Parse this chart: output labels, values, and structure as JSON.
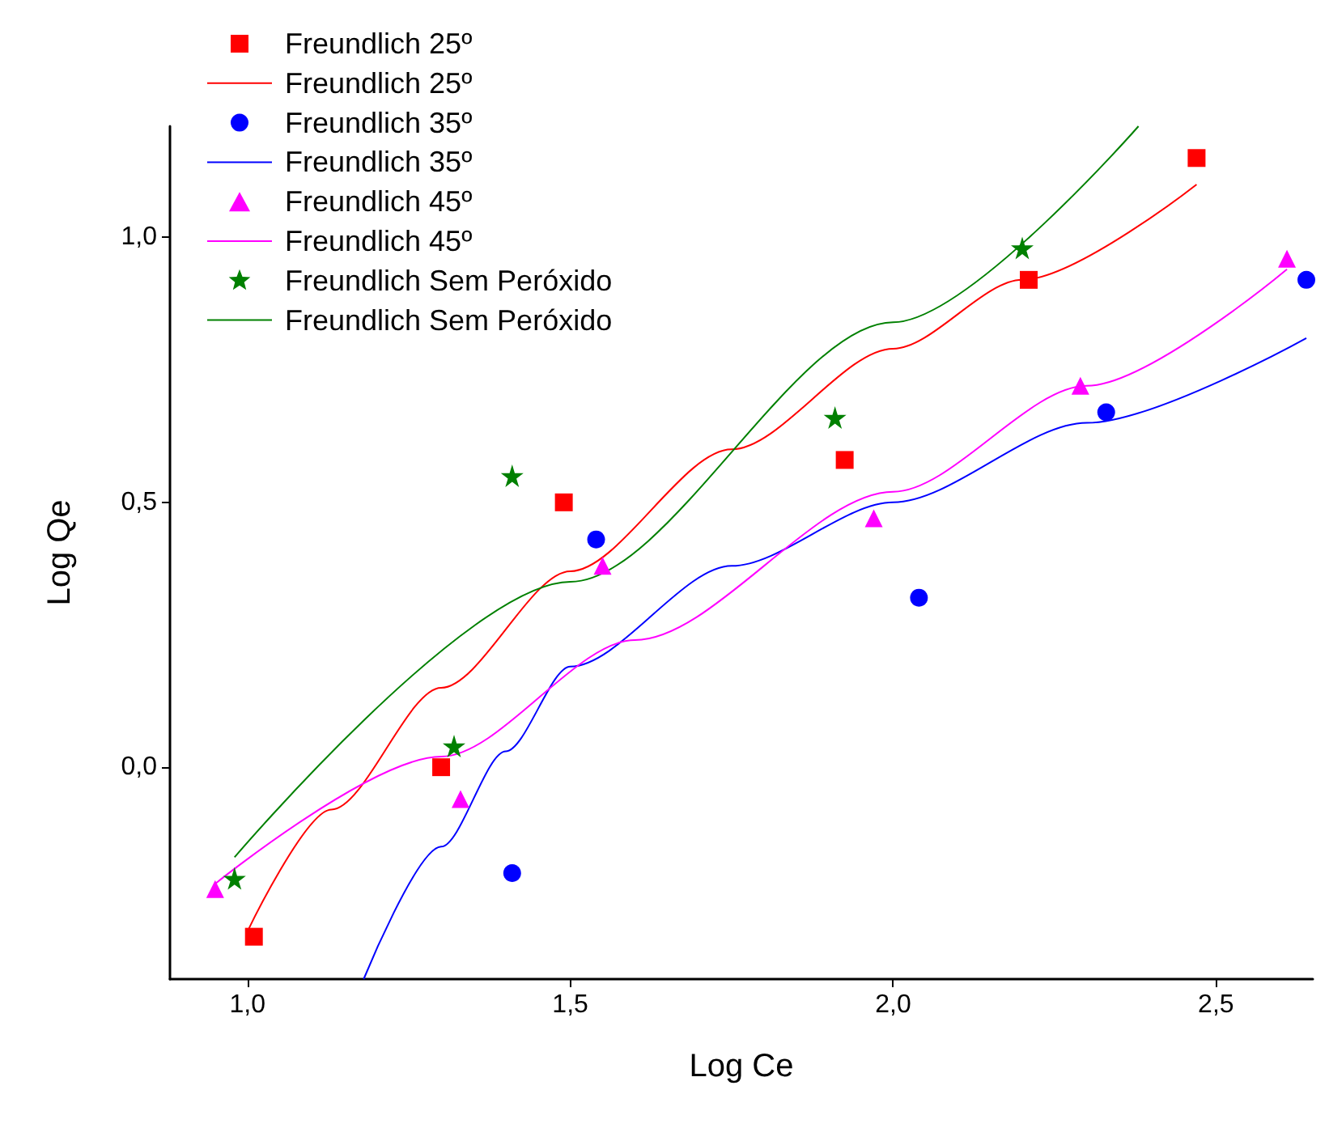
{
  "chart_data": {
    "type": "scatter",
    "xlabel": "Log Ce",
    "ylabel": "Log Qe",
    "xlim": [
      0.88,
      2.65
    ],
    "ylim": [
      -0.4,
      1.21
    ],
    "xticks": [
      {
        "value": 1,
        "label": "1,0"
      },
      {
        "value": 1.5,
        "label": "1,5"
      },
      {
        "value": 2,
        "label": "2,0"
      },
      {
        "value": 2.5,
        "label": "2,5"
      }
    ],
    "yticks": [
      {
        "value": 0,
        "label": "0,0"
      },
      {
        "value": 0.5,
        "label": "0,5"
      },
      {
        "value": 1,
        "label": "1,0"
      }
    ],
    "grid": false,
    "legend": "top left",
    "series": [
      {
        "name": "Freundlich 25º",
        "marker": "square",
        "color": "#ff0000",
        "x": [
          1.01,
          1.3,
          1.49,
          1.925,
          2.21,
          2.47
        ],
        "values": [
          -0.32,
          0.0,
          0.5,
          0.58,
          0.92,
          1.15
        ]
      },
      {
        "name": "Freundlich 25º",
        "type": "line",
        "marker": "none",
        "line_style": "solid",
        "color": "#ff0000",
        "x": [
          1.0,
          1.13,
          1.3,
          1.5,
          1.75,
          2.0,
          2.2,
          2.47
        ],
        "values": [
          -0.31,
          -0.08,
          0.15,
          0.37,
          0.6,
          0.79,
          0.92,
          1.1
        ]
      },
      {
        "name": "Freundlich 35º",
        "marker": "circle",
        "color": "#0000ff",
        "x": [
          1.41,
          1.54,
          2.04,
          2.33,
          2.64
        ],
        "values": [
          -0.2,
          0.43,
          0.32,
          0.67,
          0.92
        ]
      },
      {
        "name": "Freundlich 35º",
        "type": "line",
        "marker": "none",
        "line_style": "solid",
        "color": "#0000ff",
        "x": [
          1.18,
          1.3,
          1.4,
          1.5,
          1.75,
          2.0,
          2.3,
          2.64
        ],
        "values": [
          -0.4,
          -0.15,
          0.03,
          0.19,
          0.38,
          0.5,
          0.65,
          0.81
        ]
      },
      {
        "name": "Freundlich 45º",
        "marker": "triangle",
        "color": "#ff00ff",
        "x": [
          0.95,
          1.33,
          1.55,
          1.97,
          2.29,
          2.61
        ],
        "values": [
          -0.23,
          -0.06,
          0.38,
          0.47,
          0.72,
          0.96
        ]
      },
      {
        "name": "Freundlich 45º",
        "type": "line",
        "marker": "none",
        "line_style": "solid",
        "color": "#ff00ff",
        "x": [
          0.95,
          1.3,
          1.6,
          2.0,
          2.3,
          2.61
        ],
        "values": [
          -0.22,
          0.02,
          0.24,
          0.52,
          0.72,
          0.94
        ]
      },
      {
        "name": "Freundlich Sem Peróxido",
        "marker": "star",
        "color": "#008000",
        "x": [
          0.98,
          1.32,
          1.41,
          1.91,
          2.2
        ],
        "values": [
          -0.21,
          0.04,
          0.55,
          0.66,
          0.98
        ]
      },
      {
        "name": "Freundlich Sem Peróxido",
        "type": "line",
        "marker": "none",
        "line_style": "solid",
        "color": "#008000",
        "x": [
          0.98,
          1.5,
          2.0,
          2.38
        ],
        "values": [
          -0.17,
          0.35,
          0.84,
          1.21
        ]
      }
    ]
  }
}
